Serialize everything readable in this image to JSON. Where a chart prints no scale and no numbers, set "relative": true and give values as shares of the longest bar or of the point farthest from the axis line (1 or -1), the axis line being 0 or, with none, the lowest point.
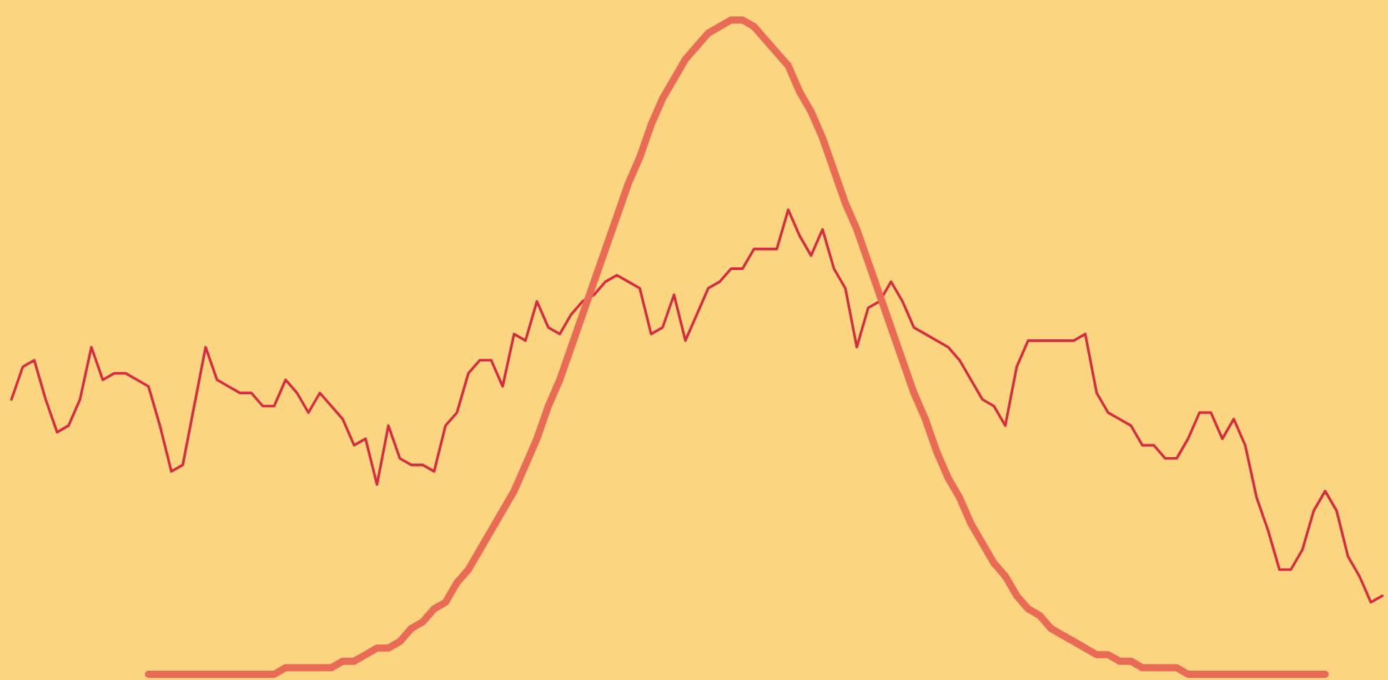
{
  "chart_data": {
    "type": "line",
    "relative": true,
    "categories": [
      null,
      null,
      null,
      null,
      null,
      null,
      null,
      null,
      null,
      null,
      null,
      null,
      null,
      null,
      null,
      null,
      null,
      null,
      null,
      null,
      null,
      null,
      null,
      null,
      null,
      null,
      null,
      null,
      null,
      null,
      null,
      null,
      null,
      null,
      null,
      null,
      null,
      null,
      null,
      null,
      null,
      null,
      null,
      null,
      null,
      null,
      null,
      null,
      null,
      null,
      null,
      null,
      null,
      null,
      null,
      null,
      null,
      null,
      null,
      null,
      null,
      null,
      null,
      null,
      null,
      null,
      null,
      null,
      null,
      null,
      null,
      null,
      null,
      null,
      null,
      null,
      null,
      null,
      null,
      null,
      null,
      null,
      null,
      null,
      null,
      null,
      null,
      null,
      null,
      null,
      null,
      null,
      null,
      null,
      null,
      null,
      null,
      null,
      null,
      null,
      null,
      null,
      null,
      null,
      null,
      null,
      null,
      null,
      null,
      null,
      null,
      null,
      null,
      null,
      null,
      null,
      null,
      null,
      null,
      null,
      null
    ],
    "series": [
      {
        "color": "#d82a40",
        "values": [
          0.42,
          0.47,
          0.48,
          0.42,
          0.37,
          0.38,
          0.42,
          0.5,
          0.45,
          0.46,
          0.46,
          0.45,
          0.44,
          0.38,
          0.31,
          0.32,
          0.41,
          0.5,
          0.45,
          0.44,
          0.43,
          0.43,
          0.41,
          0.41,
          0.45,
          0.43,
          0.4,
          0.43,
          0.41,
          0.39,
          0.35,
          0.36,
          0.29,
          0.38,
          0.33,
          0.32,
          0.32,
          0.31,
          0.38,
          0.4,
          0.46,
          0.48,
          0.48,
          0.44,
          0.52,
          0.51,
          0.57,
          0.53,
          0.52,
          0.55,
          0.57,
          0.58,
          0.6,
          0.61,
          0.6,
          0.59,
          0.52,
          0.53,
          0.58,
          0.51,
          0.55,
          0.59,
          0.6,
          0.62,
          0.62,
          0.65,
          0.65,
          0.65,
          0.71,
          0.67,
          0.64,
          0.68,
          0.62,
          0.59,
          0.5,
          0.56,
          0.57,
          0.6,
          0.57,
          0.53,
          0.52,
          0.51,
          0.5,
          0.48,
          0.45,
          0.42,
          0.41,
          0.38,
          0.47,
          0.51,
          0.51,
          0.51,
          0.51,
          0.51,
          0.52,
          0.43,
          0.4,
          0.39,
          0.38,
          0.35,
          0.35,
          0.33,
          0.33,
          0.36,
          0.4,
          0.4,
          0.36,
          0.39,
          0.35,
          0.27,
          0.22,
          0.16,
          0.16,
          0.19,
          0.25,
          0.28,
          0.25,
          0.18,
          0.15,
          0.11,
          0.12
        ]
      },
      {
        "color": "#e96b55",
        "values": [
          null,
          null,
          null,
          null,
          null,
          null,
          null,
          null,
          null,
          null,
          null,
          null,
          0,
          0,
          0,
          0,
          0,
          0,
          0,
          0,
          0,
          0,
          0,
          0,
          0.01,
          0.01,
          0.01,
          0.01,
          0.01,
          0.02,
          0.02,
          0.03,
          0.04,
          0.04,
          0.05,
          0.07,
          0.08,
          0.1,
          0.11,
          0.14,
          0.16,
          0.19,
          0.22,
          0.25,
          0.28,
          0.32,
          0.36,
          0.41,
          0.45,
          0.5,
          0.55,
          0.6,
          0.65,
          0.7,
          0.75,
          0.79,
          0.84,
          0.88,
          0.91,
          0.94,
          0.96,
          0.98,
          0.99,
          1.0,
          1.0,
          0.99,
          0.97,
          0.95,
          0.93,
          0.89,
          0.86,
          0.82,
          0.77,
          0.72,
          0.68,
          0.63,
          0.58,
          0.53,
          0.48,
          0.43,
          0.39,
          0.34,
          0.3,
          0.27,
          0.23,
          0.2,
          0.17,
          0.15,
          0.12,
          0.1,
          0.09,
          0.07,
          0.06,
          0.05,
          0.04,
          0.03,
          0.03,
          0.02,
          0.02,
          0.01,
          0.01,
          0.01,
          0.01,
          0,
          0,
          0,
          0,
          0,
          0,
          0,
          0,
          0,
          0,
          0,
          0,
          0,
          null,
          null,
          null,
          null,
          null
        ]
      }
    ]
  }
}
